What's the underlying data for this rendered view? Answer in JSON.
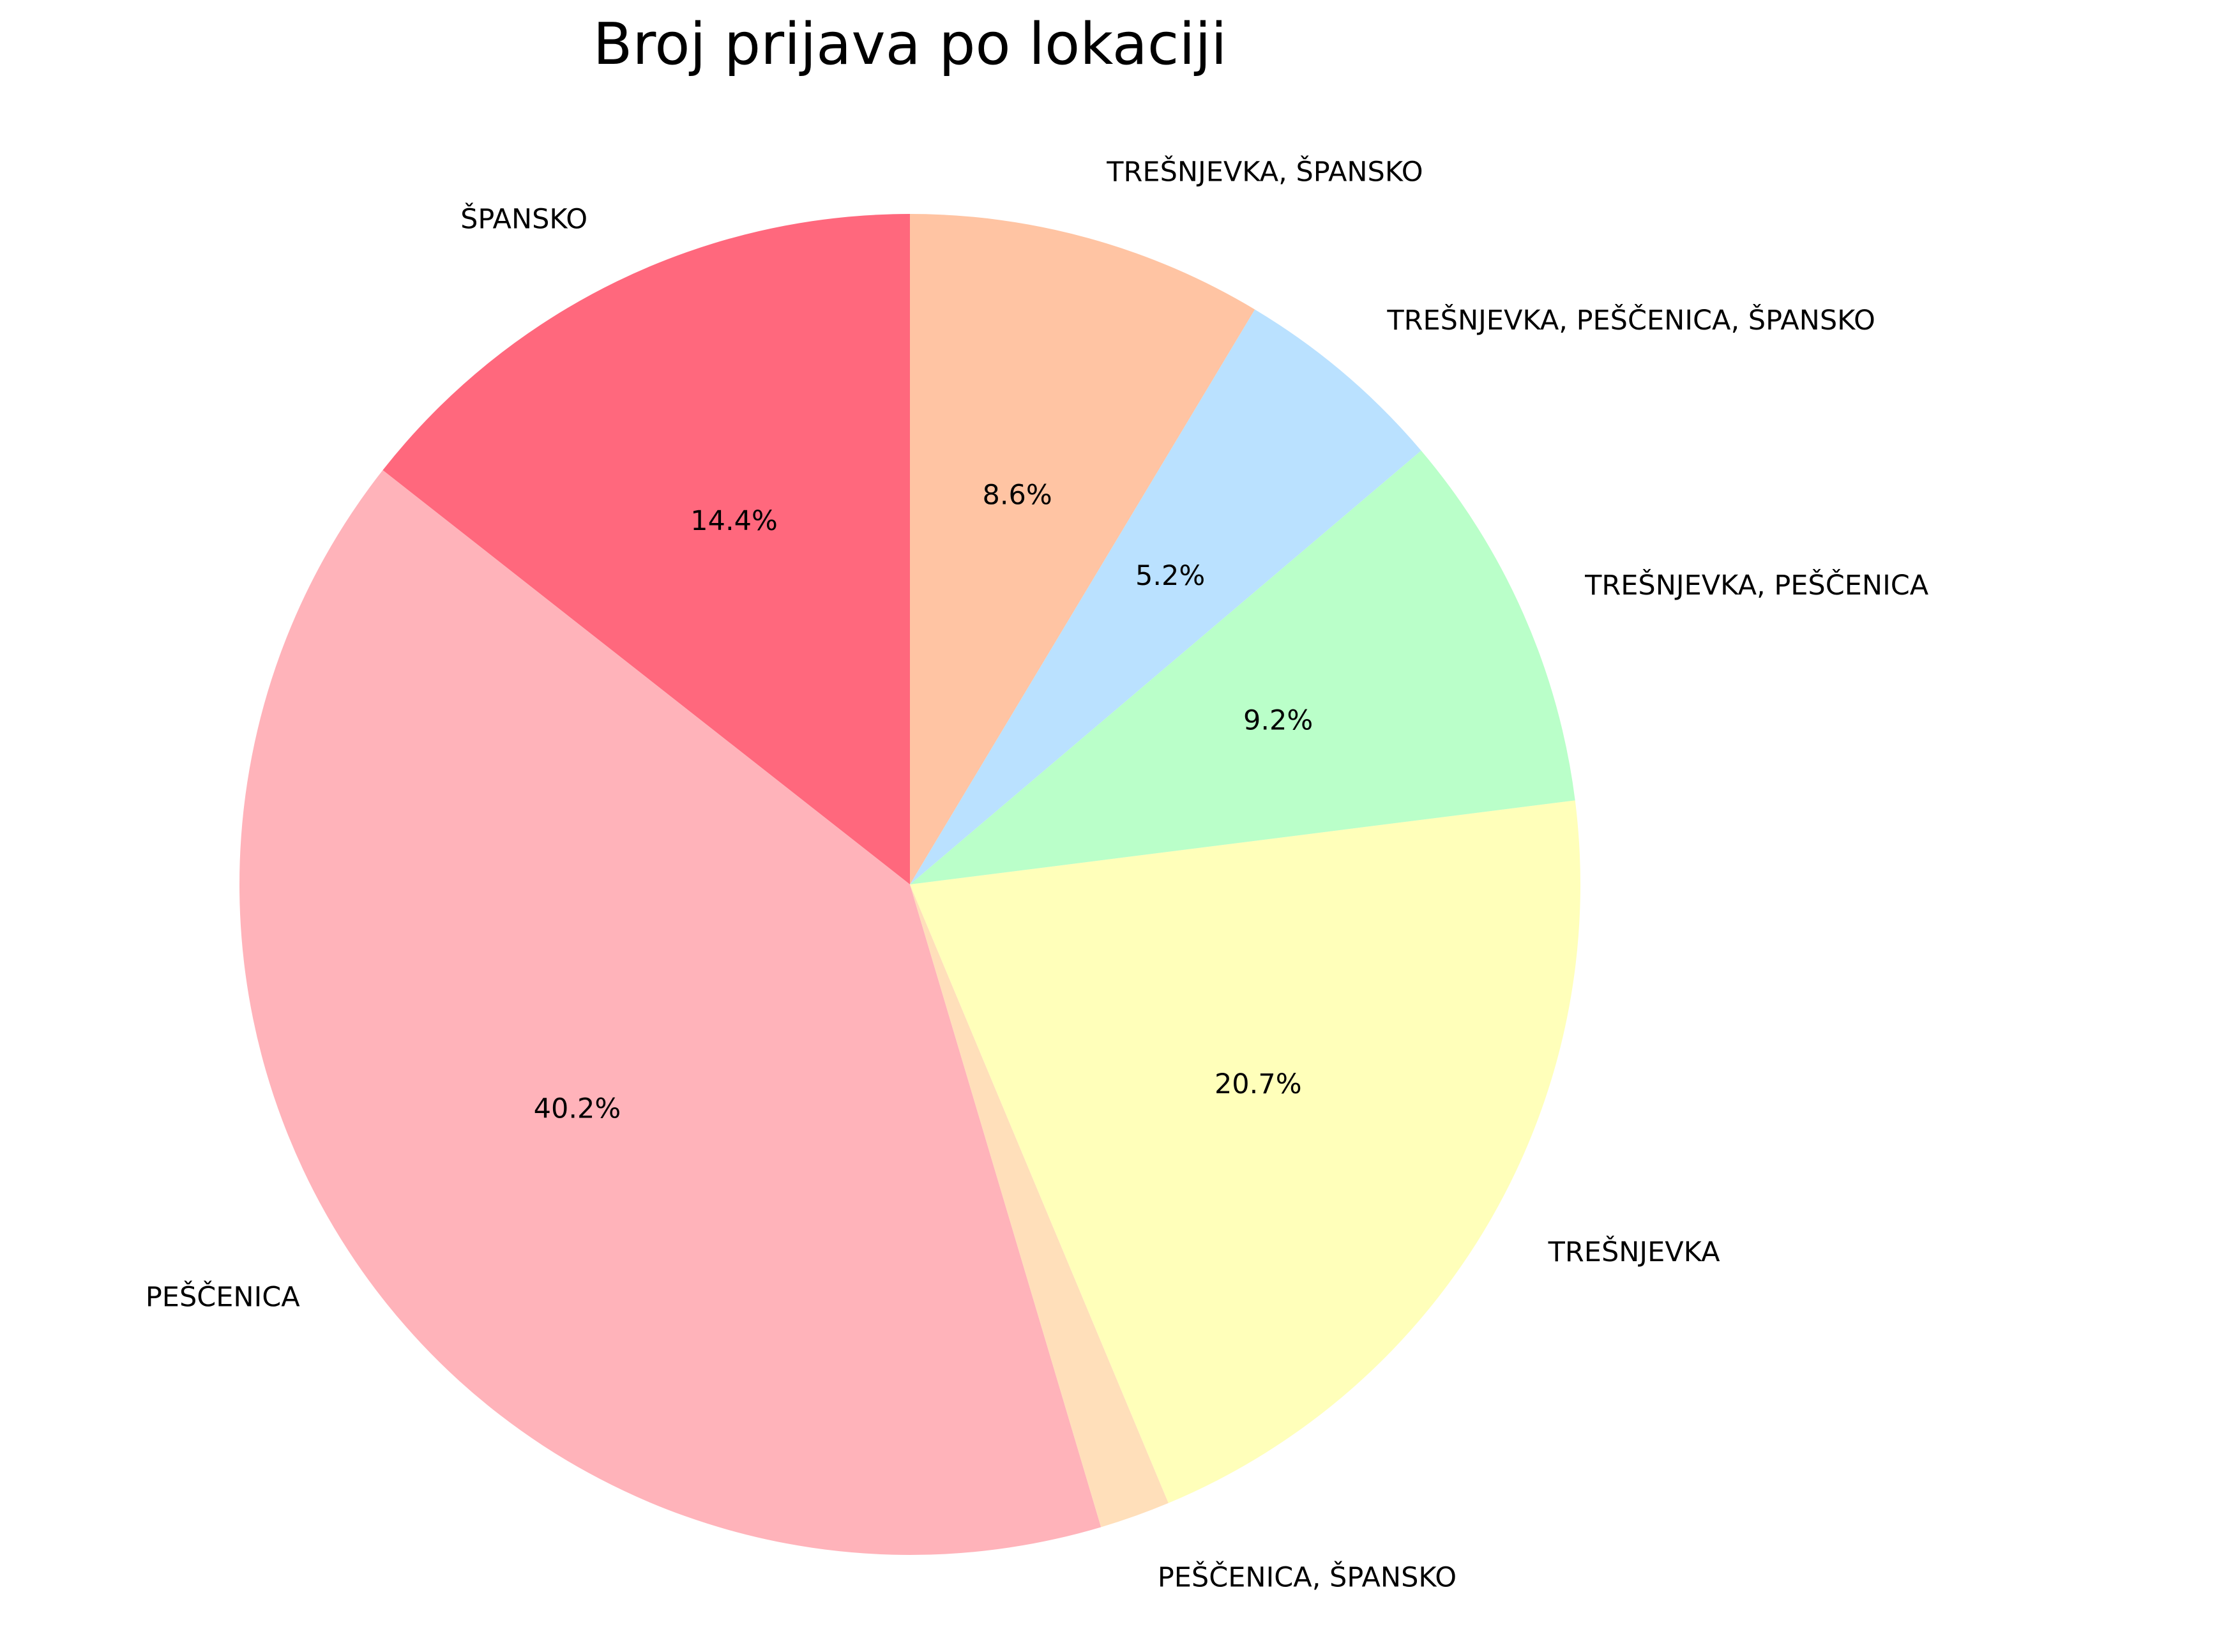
{
  "chart_data": {
    "type": "pie",
    "title": "Broj prijava po lokaciji",
    "start_angle_deg": 90,
    "direction": "counterclockwise",
    "slices": [
      {
        "label": "ŠPANSKO",
        "percent_label": "14.4%",
        "value": 14.4,
        "color": "#ff687d"
      },
      {
        "label": "PEŠČENICA",
        "percent_label": "40.2%",
        "value": 40.2,
        "color": "#ffb3ba"
      },
      {
        "label": "PEŠČENICA, ŠPANSKO",
        "percent_label": "",
        "value": 1.7,
        "color": "#ffdfba"
      },
      {
        "label": "TREŠNJEVKA",
        "percent_label": "20.7%",
        "value": 20.7,
        "color": "#ffffba"
      },
      {
        "label": "TREŠNJEVKA, PEŠČENICA",
        "percent_label": "9.2%",
        "value": 9.2,
        "color": "#baffc9"
      },
      {
        "label": "TREŠNJEVKA, PEŠČENICA, ŠPANSKO",
        "percent_label": "5.2%",
        "value": 5.2,
        "color": "#bae1ff"
      },
      {
        "label": "TREŠNJEVKA, ŠPANSKO",
        "percent_label": "8.6%",
        "value": 8.6,
        "color": "#ffc4a3"
      }
    ]
  }
}
